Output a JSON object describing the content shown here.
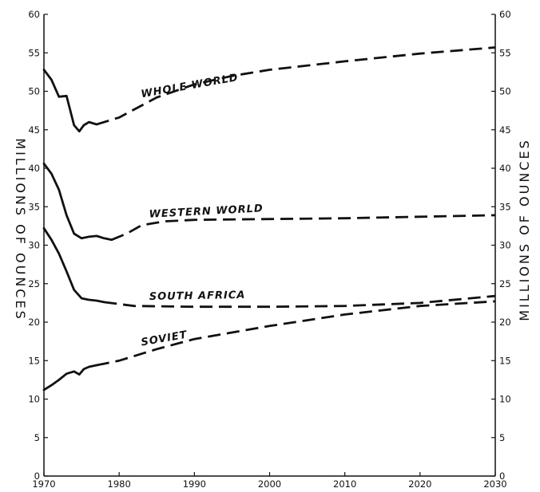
{
  "chart_data": {
    "type": "line",
    "x_ticks": [
      1970,
      1980,
      1990,
      2000,
      2010,
      2020,
      2030
    ],
    "y_ticks": [
      0,
      5,
      10,
      15,
      20,
      25,
      30,
      35,
      40,
      45,
      50,
      55,
      60
    ],
    "xlim": [
      1970,
      2030
    ],
    "ylim": [
      0,
      60
    ],
    "ylabel_left": "MILLIONS OF OUNCES",
    "ylabel_right": "MILLIONS OF OUNCES",
    "grid": false,
    "legend": "inline labels",
    "series": [
      {
        "name": "WHOLE WORLD",
        "actual": [
          [
            1970,
            52.8
          ],
          [
            1971,
            51.5
          ],
          [
            1972,
            49.3
          ],
          [
            1973,
            49.4
          ],
          [
            1974,
            45.6
          ],
          [
            1974.7,
            44.8
          ],
          [
            1975.3,
            45.6
          ],
          [
            1976,
            46.0
          ],
          [
            1977,
            45.7
          ]
        ],
        "projected": [
          [
            1977,
            45.7
          ],
          [
            1980,
            46.6
          ],
          [
            1985,
            49.2
          ],
          [
            1990,
            50.9
          ],
          [
            1995,
            52.0
          ],
          [
            2000,
            52.8
          ],
          [
            2010,
            53.9
          ],
          [
            2020,
            54.9
          ],
          [
            2030,
            55.7
          ]
        ]
      },
      {
        "name": "WESTERN WORLD",
        "actual": [
          [
            1970,
            40.6
          ],
          [
            1971,
            39.3
          ],
          [
            1972,
            37.2
          ],
          [
            1973,
            33.9
          ],
          [
            1974,
            31.5
          ],
          [
            1975,
            30.9
          ],
          [
            1976,
            31.1
          ],
          [
            1977,
            31.2
          ],
          [
            1978,
            30.9
          ],
          [
            1979,
            30.7
          ]
        ],
        "projected": [
          [
            1979,
            30.7
          ],
          [
            1981,
            31.5
          ],
          [
            1983,
            32.6
          ],
          [
            1986,
            33.1
          ],
          [
            1990,
            33.3
          ],
          [
            2000,
            33.4
          ],
          [
            2010,
            33.5
          ],
          [
            2020,
            33.7
          ],
          [
            2030,
            33.9
          ]
        ]
      },
      {
        "name": "SOUTH AFRICA",
        "actual": [
          [
            1970,
            32.2
          ],
          [
            1971,
            30.7
          ],
          [
            1972,
            28.9
          ],
          [
            1973,
            26.6
          ],
          [
            1974,
            24.2
          ],
          [
            1975,
            23.1
          ],
          [
            1976,
            22.9
          ],
          [
            1977,
            22.8
          ],
          [
            1978,
            22.6
          ]
        ],
        "projected": [
          [
            1978,
            22.6
          ],
          [
            1982,
            22.1
          ],
          [
            1990,
            22.0
          ],
          [
            2000,
            22.0
          ],
          [
            2010,
            22.1
          ],
          [
            2020,
            22.5
          ],
          [
            2030,
            23.4
          ]
        ]
      },
      {
        "name": "SOVIET",
        "actual": [
          [
            1970,
            11.2
          ],
          [
            1971,
            11.8
          ],
          [
            1972,
            12.5
          ],
          [
            1973,
            13.3
          ],
          [
            1974,
            13.6
          ],
          [
            1974.7,
            13.2
          ],
          [
            1975.3,
            13.9
          ],
          [
            1976,
            14.2
          ],
          [
            1977,
            14.4
          ]
        ],
        "projected": [
          [
            1977,
            14.4
          ],
          [
            1980,
            15.0
          ],
          [
            1985,
            16.5
          ],
          [
            1990,
            17.8
          ],
          [
            2000,
            19.5
          ],
          [
            2010,
            21.0
          ],
          [
            2020,
            22.1
          ],
          [
            2030,
            22.7
          ]
        ]
      }
    ]
  }
}
